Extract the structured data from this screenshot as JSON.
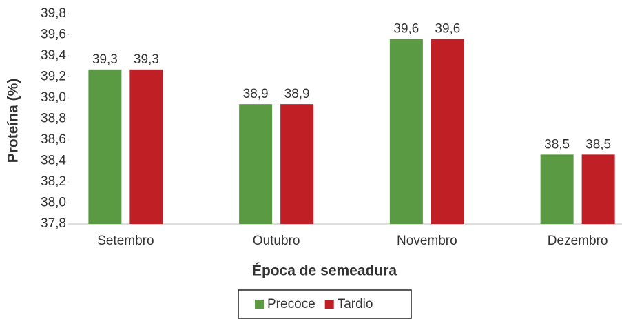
{
  "chart_data": {
    "type": "bar",
    "x_label": "Época de semeadura",
    "y_label": "Proteína (%)",
    "categories": [
      "Setembro",
      "Outubro",
      "Novembro",
      "Dezembro"
    ],
    "series": [
      {
        "name": "Precoce",
        "color": "#5a9a43",
        "values": [
          39.27,
          38.94,
          39.56,
          38.46
        ],
        "value_labels": [
          "39,3",
          "38,9",
          "39,6",
          "38,5"
        ]
      },
      {
        "name": "Tardio",
        "color": "#bf1f25",
        "values": [
          39.27,
          38.94,
          39.56,
          38.46
        ],
        "value_labels": [
          "39,3",
          "38,9",
          "39,6",
          "38,5"
        ]
      }
    ],
    "ylim": [
      37.8,
      39.8
    ],
    "yticks": [
      {
        "value": 37.8,
        "label": "37,8"
      },
      {
        "value": 38.0,
        "label": "38,0"
      },
      {
        "value": 38.2,
        "label": "38,2"
      },
      {
        "value": 38.4,
        "label": "38,4"
      },
      {
        "value": 38.6,
        "label": "38,6"
      },
      {
        "value": 38.8,
        "label": "38,8"
      },
      {
        "value": 39.0,
        "label": "39,0"
      },
      {
        "value": 39.2,
        "label": "39,2"
      },
      {
        "value": 39.4,
        "label": "39,4"
      },
      {
        "value": 39.6,
        "label": "39,6"
      },
      {
        "value": 39.8,
        "label": "39,8"
      }
    ],
    "legend": "bottom"
  }
}
